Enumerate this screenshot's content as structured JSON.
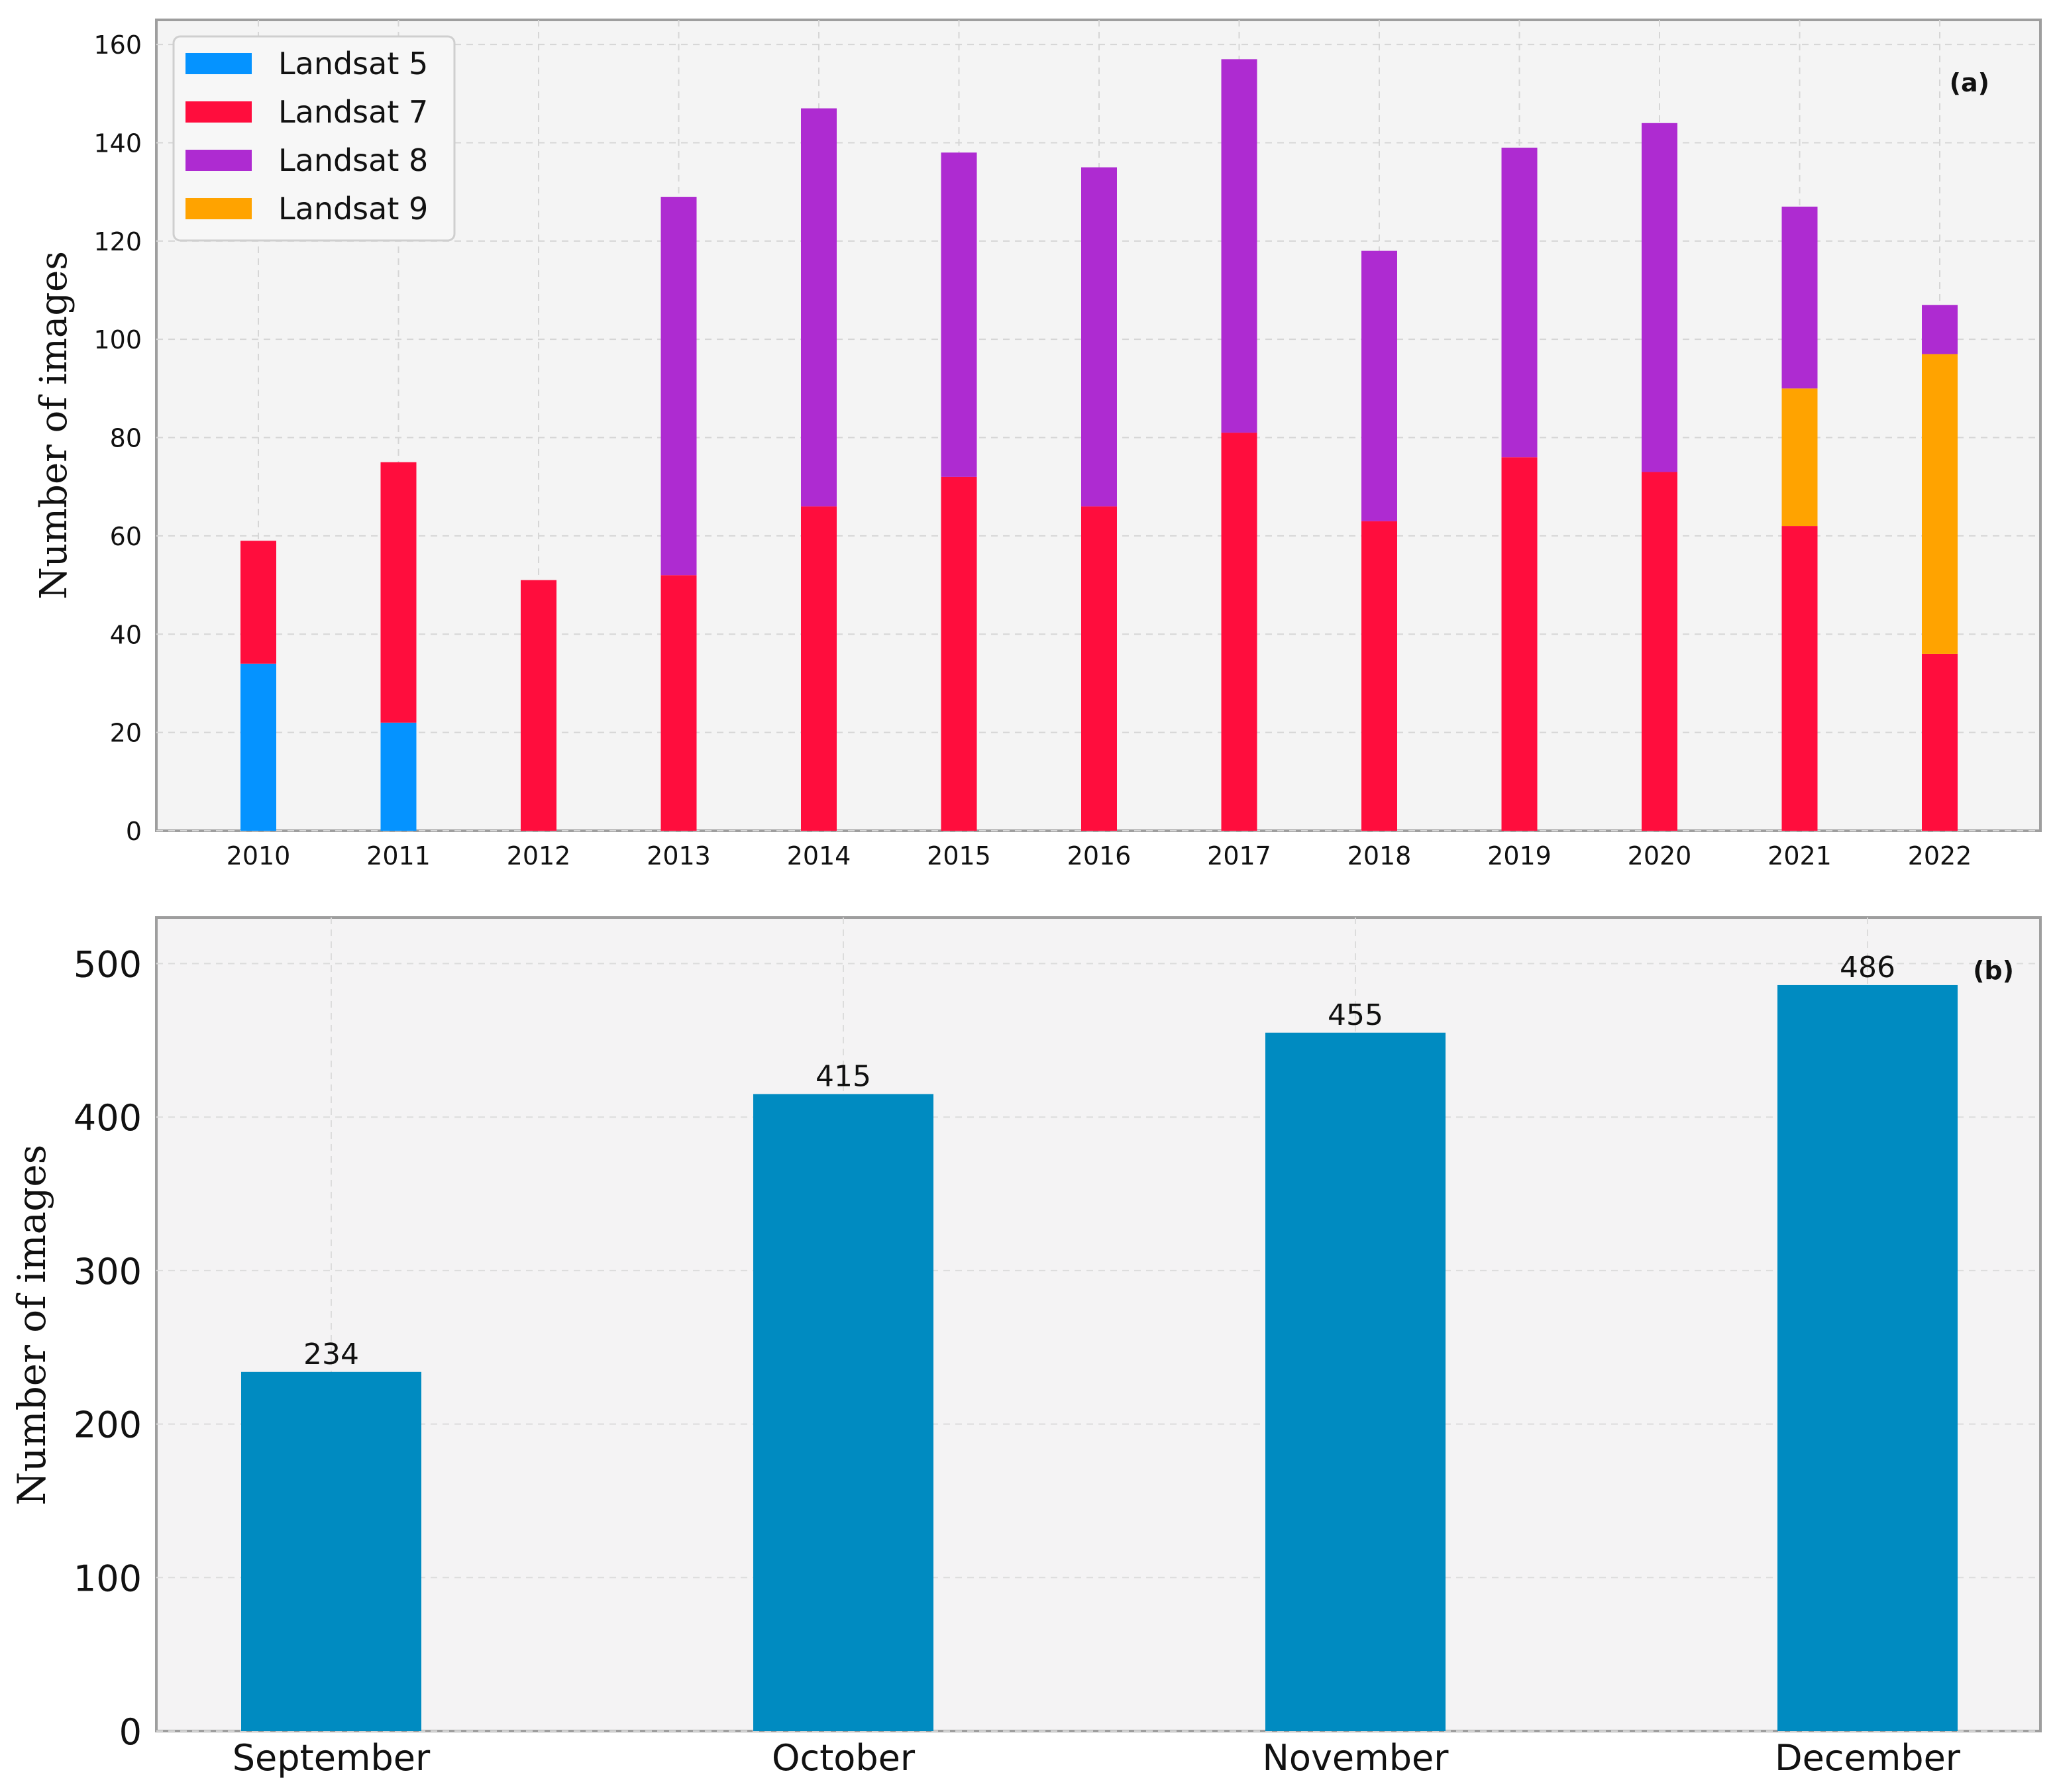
{
  "chart_data": [
    {
      "type": "bar",
      "stacked": true,
      "panel_label": "(a)",
      "title": "",
      "xlabel": "",
      "ylabel": "Number of images",
      "ylim": [
        0,
        165
      ],
      "yticks": [
        0,
        20,
        40,
        60,
        80,
        100,
        120,
        140,
        160
      ],
      "categories": [
        "2010",
        "2011",
        "2012",
        "2013",
        "2014",
        "2015",
        "2016",
        "2017",
        "2018",
        "2019",
        "2020",
        "2021",
        "2022"
      ],
      "series": [
        {
          "name": "Landsat 5",
          "color": "#0593FF",
          "values": [
            34,
            22,
            0,
            0,
            0,
            0,
            0,
            0,
            0,
            0,
            0,
            0,
            0
          ]
        },
        {
          "name": "Landsat 7",
          "color": "#FF0D3D",
          "values": [
            25,
            53,
            51,
            52,
            66,
            72,
            66,
            81,
            63,
            76,
            73,
            62,
            36
          ]
        },
        {
          "name": "Landsat 8",
          "color": "#AE2BD1",
          "values": [
            0,
            0,
            0,
            77,
            81,
            66,
            69,
            76,
            55,
            63,
            71,
            37,
            10
          ]
        },
        {
          "name": "Landsat 9",
          "color": "#FFA300",
          "values": [
            0,
            0,
            0,
            0,
            0,
            0,
            0,
            0,
            0,
            0,
            0,
            28,
            61
          ]
        }
      ],
      "stack_order": [
        "Landsat 5",
        "Landsat 7",
        "Landsat 9",
        "Landsat 8"
      ],
      "grid": true,
      "legend": "top-left"
    },
    {
      "type": "bar",
      "panel_label": "(b)",
      "title": "",
      "xlabel": "",
      "ylabel": "Number of images",
      "ylim": [
        0,
        530
      ],
      "yticks": [
        0,
        100,
        200,
        300,
        400,
        500
      ],
      "categories": [
        "September",
        "October",
        "November",
        "December"
      ],
      "values": [
        234,
        415,
        455,
        486
      ],
      "data_labels": [
        "234",
        "415",
        "455",
        "486"
      ],
      "color": "#008BC1",
      "grid": true
    }
  ]
}
